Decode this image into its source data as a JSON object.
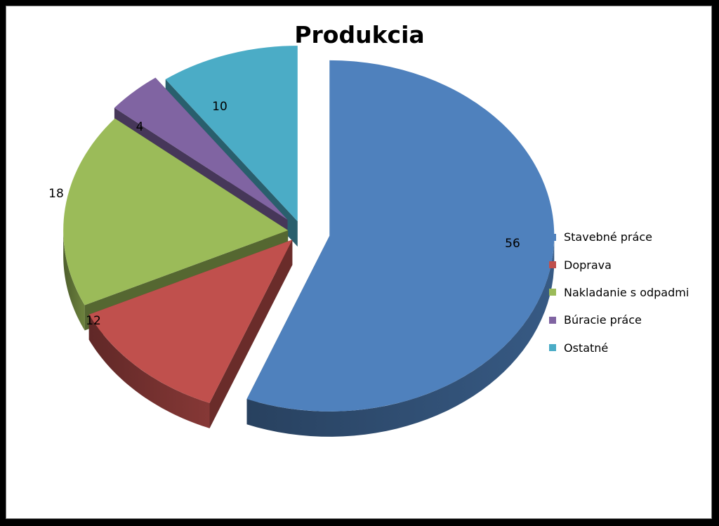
{
  "chart_data": {
    "type": "pie",
    "title": "Produkcia",
    "categories": [
      "Stavebné práce",
      "Doprava",
      "Nakladanie s odpadmi",
      "Búracie práce",
      "Ostatné"
    ],
    "values": [
      56,
      12,
      18,
      4,
      10
    ],
    "colors": [
      "#4F81BD",
      "#C0504D",
      "#9BBB59",
      "#8064A2",
      "#4BACC6"
    ],
    "legend_position": "right",
    "exploded": true,
    "style": "3d"
  }
}
